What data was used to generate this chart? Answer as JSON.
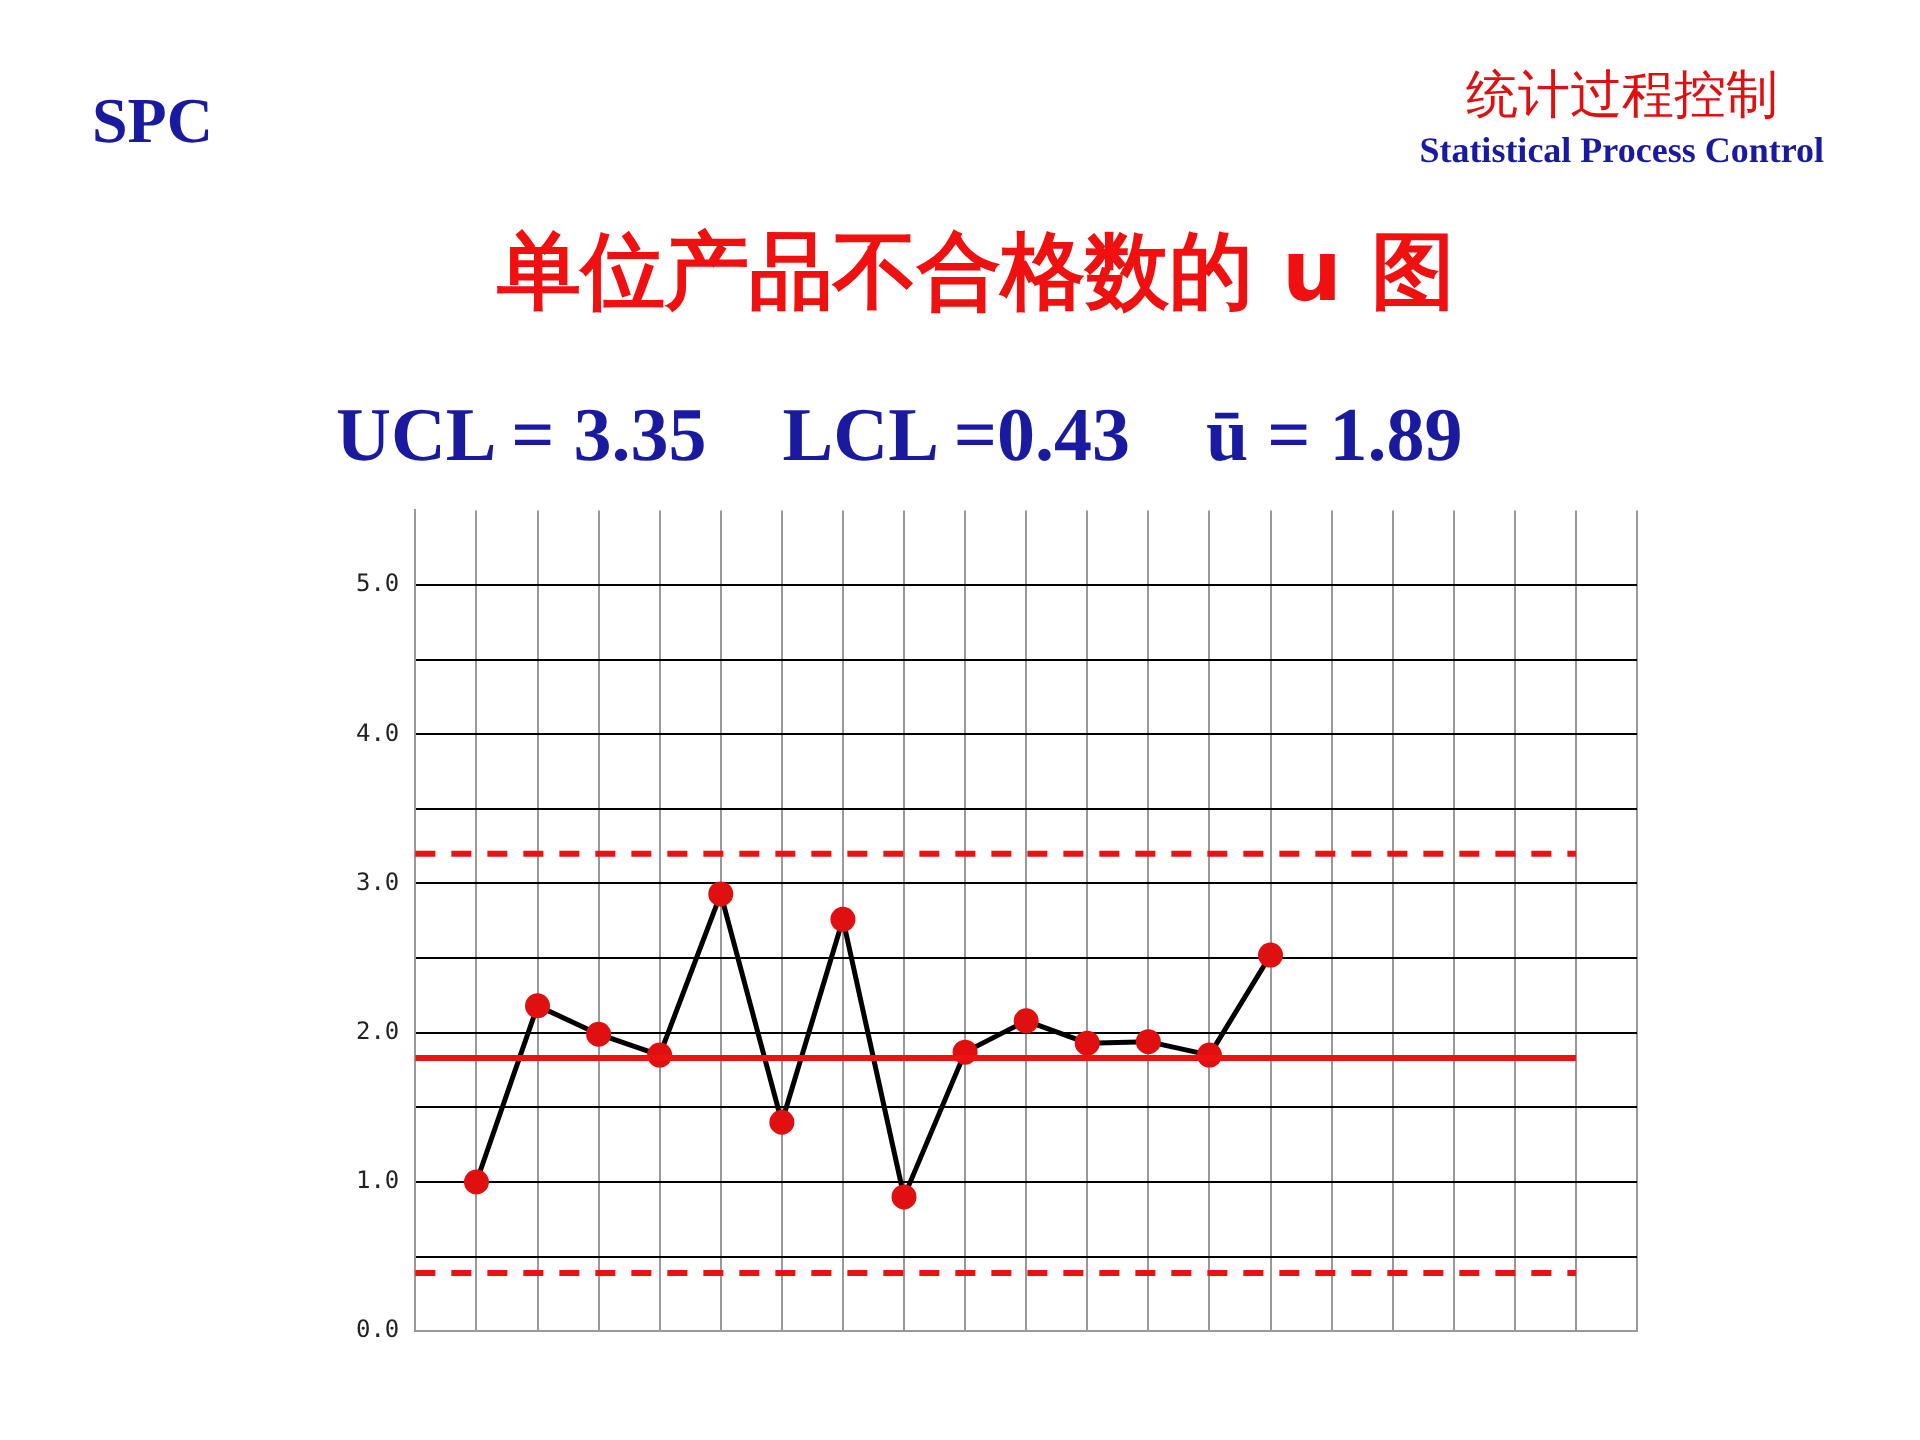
{
  "chart_data": {
    "type": "line",
    "title": "单位产品不合格数的 u 图",
    "subtitle": "UCL = 3.35    LCL =0.43    ū = 1.89",
    "annotations": [
      "SPC",
      "统计过程控制",
      "Statistical Process Control"
    ],
    "categories": [
      null,
      null,
      null,
      null,
      null,
      null,
      null,
      null,
      null,
      null,
      null,
      null,
      null,
      null,
      null,
      null,
      null,
      null,
      null,
      null,
      null
    ],
    "series": [
      {
        "color": "#000000",
        "colors": [
          "#e01010",
          "#e01010",
          "#e01010",
          "#e01010",
          "#e01010",
          "#e01010",
          "#e01010",
          "#e01010",
          "#e01010",
          "#e01010",
          "#e01010",
          "#e01010",
          "#e01010",
          "#e01010",
          "#e01010",
          "#e01010",
          "#e01010",
          "#e01010",
          "#e01010",
          "#e01010",
          "#e01010"
        ],
        "values": [
          null,
          1.0,
          2.18,
          1.99,
          1.85,
          2.93,
          1.4,
          2.76,
          0.9,
          1.87,
          2.08,
          1.93,
          1.94,
          1.85,
          2.52,
          null,
          null,
          null,
          null,
          null,
          null
        ]
      }
    ],
    "ylim": [
      0,
      5.5
    ],
    "yticks": [
      {
        "value": 0,
        "label": "0.0"
      },
      {
        "value": 0.5,
        "label": null
      },
      {
        "value": 1,
        "label": "1.0"
      },
      {
        "value": 1.5,
        "label": null
      },
      {
        "value": 2,
        "label": "2.0"
      },
      {
        "value": 2.5,
        "label": null
      },
      {
        "value": 3,
        "label": "3.0"
      },
      {
        "value": 3.5,
        "label": null
      },
      {
        "value": 4,
        "label": "4.0"
      },
      {
        "value": 4.5,
        "label": null
      },
      {
        "value": 5,
        "label": "5.0"
      }
    ],
    "ref_lines": [
      {
        "axis": "y",
        "value": 3.2,
        "color": "#ee1111",
        "line_style": "dashed"
      },
      {
        "axis": "y",
        "value": 0.39,
        "color": "#ee1111",
        "line_style": "dashed"
      },
      {
        "axis": "y",
        "value": 1.83,
        "color": "#ee1111",
        "line_style": "solid"
      }
    ],
    "grid": true,
    "legend": false,
    "marker": "circle",
    "line_style": "solid"
  }
}
